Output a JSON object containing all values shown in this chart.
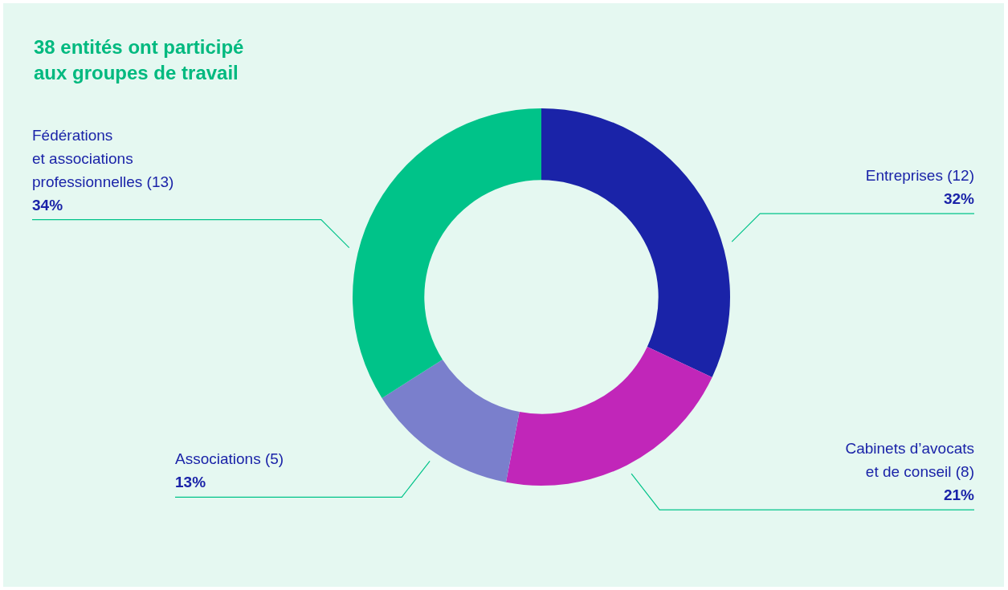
{
  "chart_data": {
    "type": "donut",
    "title": "38 entités ont participé\naux groupes de travail",
    "categories": [
      "Entreprises (12)",
      "Cabinets d’avocats\net de conseil (8)",
      "Associations (5)",
      "Fédérations\net associations\nprofessionnelles (13)"
    ],
    "values": [
      32,
      21,
      13,
      34
    ],
    "colors": [
      "#1a23a8",
      "#c126b9",
      "#7a7fcc",
      "#00c389"
    ],
    "value_labels": [
      "32%",
      "21%",
      "13%",
      "34%"
    ],
    "legend": false
  }
}
